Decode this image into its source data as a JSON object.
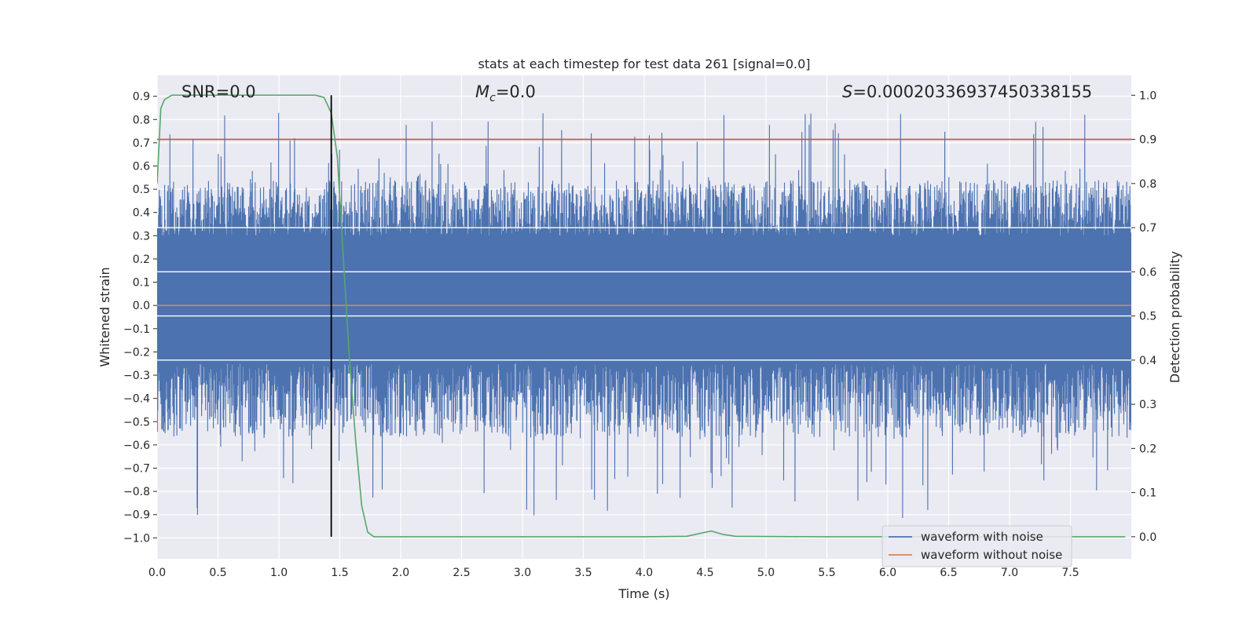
{
  "chart_data": {
    "type": "line",
    "title": "stats at each timestep for test data 261 [signal=0.0]",
    "xlabel": "Time (s)",
    "ylabel": "Whitened strain",
    "y2label": "Detection probability",
    "xlim": [
      0.0,
      8.0
    ],
    "ylim": [
      -1.09,
      0.99
    ],
    "y2lim": [
      -0.05,
      1.045
    ],
    "xticks": [
      "0.0",
      "0.5",
      "1.0",
      "1.5",
      "2.0",
      "2.5",
      "3.0",
      "3.5",
      "4.0",
      "4.5",
      "5.0",
      "5.5",
      "6.0",
      "6.5",
      "7.0",
      "7.5"
    ],
    "xtick_values": [
      0.0,
      0.5,
      1.0,
      1.5,
      2.0,
      2.5,
      3.0,
      3.5,
      4.0,
      4.5,
      5.0,
      5.5,
      6.0,
      6.5,
      7.0,
      7.5
    ],
    "yticks": [
      "0.9",
      "0.8",
      "0.7",
      "0.6",
      "0.5",
      "0.4",
      "0.3",
      "0.2",
      "0.1",
      "0.0",
      "−0.1",
      "−0.2",
      "−0.3",
      "−0.4",
      "−0.5",
      "−0.6",
      "−0.7",
      "−0.8",
      "−0.9",
      "−1.0"
    ],
    "ytick_values": [
      0.9,
      0.8,
      0.7,
      0.6,
      0.5,
      0.4,
      0.3,
      0.2,
      0.1,
      0.0,
      -0.1,
      -0.2,
      -0.3,
      -0.4,
      -0.5,
      -0.6,
      -0.7,
      -0.8,
      -0.9,
      -1.0
    ],
    "y2ticks": [
      "1.0",
      "0.9",
      "0.8",
      "0.7",
      "0.6",
      "0.5",
      "0.4",
      "0.3",
      "0.2",
      "0.1",
      "0.0"
    ],
    "y2tick_values": [
      1.0,
      0.9,
      0.8,
      0.7,
      0.6,
      0.5,
      0.4,
      0.3,
      0.2,
      0.1,
      0.0
    ],
    "annotations": {
      "snr": "SNR=0.0",
      "mc_symbol": "M",
      "mc_sub": "c",
      "mc_value": "=0.0",
      "s_symbol": "S",
      "s_value": "=0.00020336937450338155"
    },
    "legend": {
      "position": "lower right",
      "entries": [
        "waveform with noise",
        "waveform without noise"
      ]
    },
    "noise_series": {
      "name": "waveform with noise",
      "color": "#4c72b0",
      "core_range": [
        -0.25,
        0.3
      ],
      "typical_upper": 0.45,
      "typical_lower": -0.45,
      "max": 0.9,
      "min": -1.0
    },
    "clean_series": {
      "name": "waveform without noise",
      "color": "#dd8452",
      "x": [
        0.0,
        8.0
      ],
      "y": [
        0.0,
        0.0
      ]
    },
    "threshold": {
      "value": 0.9,
      "axis": "right",
      "color": "#c44e52"
    },
    "marker_line": {
      "x": 1.43,
      "color": "#000000"
    },
    "probability_series": {
      "name": "Detection probability",
      "color": "#55a868",
      "x": [
        0.0,
        0.03,
        0.06,
        0.12,
        0.5,
        1.0,
        1.3,
        1.37,
        1.43,
        1.48,
        1.53,
        1.58,
        1.63,
        1.68,
        1.73,
        1.78,
        1.83,
        2.0,
        3.0,
        4.0,
        4.35,
        4.45,
        4.55,
        4.65,
        4.75,
        5.0,
        5.5,
        6.0,
        7.0,
        7.95
      ],
      "y": [
        0.8,
        0.97,
        0.99,
        1.0,
        1.0,
        1.0,
        1.0,
        0.995,
        0.96,
        0.86,
        0.63,
        0.4,
        0.22,
        0.07,
        0.01,
        0.0,
        0.0,
        0.0,
        0.0,
        0.0,
        0.001,
        0.007,
        0.013,
        0.005,
        0.001,
        0.0005,
        0.0,
        0.0,
        0.0,
        0.0
      ]
    }
  }
}
